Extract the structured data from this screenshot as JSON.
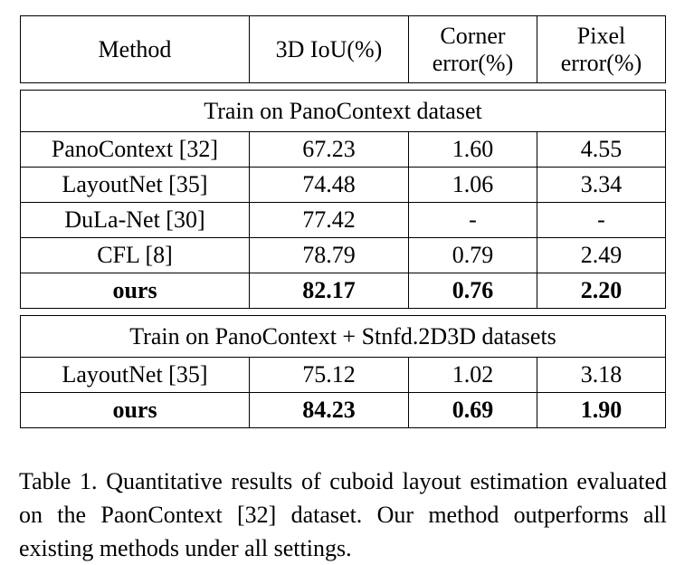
{
  "table": {
    "header": {
      "method": "Method",
      "iou": "3D IoU(%)",
      "corner_line1": "Corner",
      "corner_line2": "error(%)",
      "pixel_line1": "Pixel",
      "pixel_line2": "error(%)"
    },
    "section1": {
      "title": "Train on PanoContext dataset",
      "rows": [
        {
          "method": "PanoContext [32]",
          "iou": "67.23",
          "corner": "1.60",
          "pixel": "4.55"
        },
        {
          "method": "LayoutNet [35]",
          "iou": "74.48",
          "corner": "1.06",
          "pixel": "3.34"
        },
        {
          "method": "DuLa-Net [30]",
          "iou": "77.42",
          "corner": "-",
          "pixel": "-"
        },
        {
          "method": "CFL [8]",
          "iou": "78.79",
          "corner": "0.79",
          "pixel": "2.49"
        },
        {
          "method": "ours",
          "iou": "82.17",
          "corner": "0.76",
          "pixel": "2.20"
        }
      ]
    },
    "section2": {
      "title": "Train on PanoContext + Stnfd.2D3D datasets",
      "rows": [
        {
          "method": "LayoutNet [35]",
          "iou": "75.12",
          "corner": "1.02",
          "pixel": "3.18"
        },
        {
          "method": "ours",
          "iou": "84.23",
          "corner": "0.69",
          "pixel": "1.90"
        }
      ]
    }
  },
  "caption": "Table 1.  Quantitative results of cuboid layout estimation evaluated on the PaonContext [32] dataset. Our method outperforms all existing methods under all settings."
}
